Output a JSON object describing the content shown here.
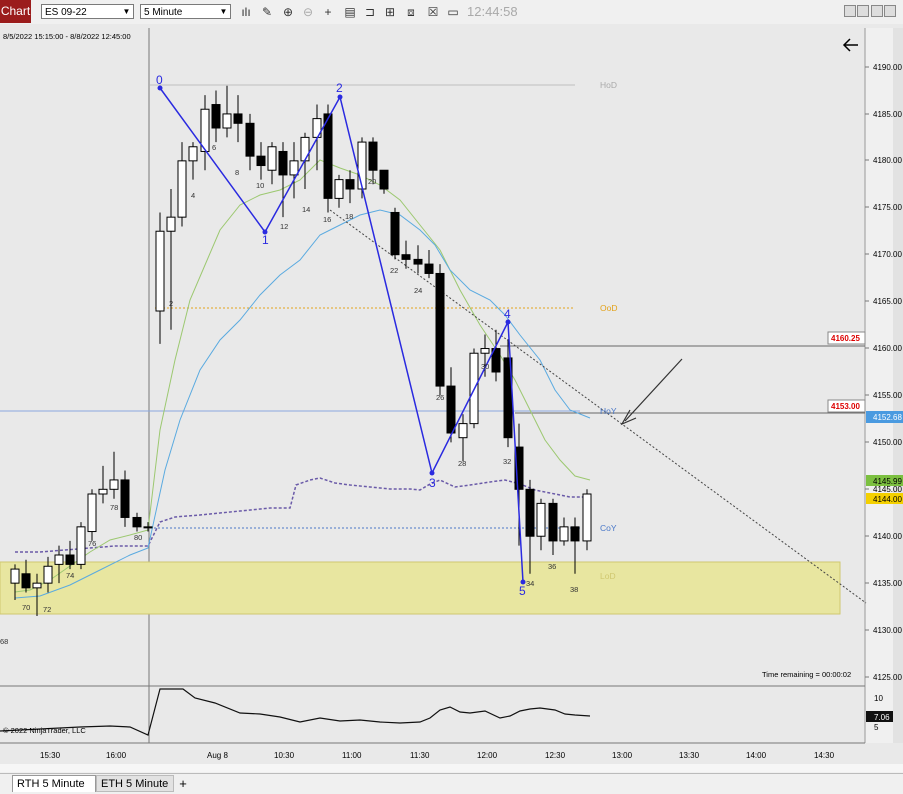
{
  "toolbar": {
    "chart_tab": "Chart",
    "instrument": "ES 09-22",
    "interval": "5 Minute",
    "clock": "12:44:58",
    "icons": [
      "bar-style-icon",
      "draw-pencil-icon",
      "zoom-in-icon",
      "zoom-out-icon",
      "crosshair-icon",
      "data-box-icon",
      "properties-icon",
      "indicators-icon",
      "strategies-icon",
      "templates-icon",
      "snapshot-icon"
    ]
  },
  "chart": {
    "date_range": "8/5/2022 15:15:00 - 8/8/2022 12:45:00",
    "copyright": "© 2022 NinjaTrader, LLC",
    "time_remaining": "Time remaining = 00:00:02",
    "left_edge_label": "68",
    "price_axis": [
      "4190.00",
      "4185.00",
      "4180.00",
      "4175.00",
      "4170.00",
      "4165.00",
      "4160.00",
      "4155.00",
      "4150.00",
      "4145.00",
      "4140.00",
      "4135.00",
      "4130.00",
      "4125.00"
    ],
    "price_markers": [
      {
        "label": "4160.25",
        "type": "red-text"
      },
      {
        "label": "4153.00",
        "type": "red-text"
      },
      {
        "label": "4152.68",
        "type": "blue-fill"
      },
      {
        "label": "4145.99",
        "type": "green-fill"
      },
      {
        "label": "4144.00",
        "type": "yellow-fill"
      }
    ],
    "level_labels": [
      {
        "label": "HoD",
        "color": "#a9a9a9"
      },
      {
        "label": "OoD",
        "color": "#e3a21a"
      },
      {
        "label": "HoY",
        "color": "#4a78c8"
      },
      {
        "label": "CoY",
        "color": "#4a78c8"
      },
      {
        "label": "LoD",
        "color": "#d0c870"
      }
    ],
    "wave_labels": [
      "0",
      "1",
      "2",
      "3",
      "4",
      "5"
    ],
    "bar_numbers": [
      "70",
      "72",
      "74",
      "76",
      "78",
      "80",
      "2",
      "4",
      "6",
      "8",
      "10",
      "12",
      "14",
      "16",
      "18",
      "20",
      "22",
      "24",
      "26",
      "28",
      "30",
      "32",
      "34",
      "36",
      "38"
    ],
    "time_axis": [
      "15:30",
      "16:00",
      "Aug 8",
      "10:30",
      "11:00",
      "11:30",
      "12:00",
      "12:30",
      "13:00",
      "13:30",
      "14:00",
      "14:30"
    ],
    "indicator_axis": [
      "10",
      "5"
    ],
    "indicator_value": "7.06"
  },
  "tabs": {
    "rth": "RTH  5 Minute",
    "eth": "ETH  5 Minute",
    "add": "+"
  }
}
